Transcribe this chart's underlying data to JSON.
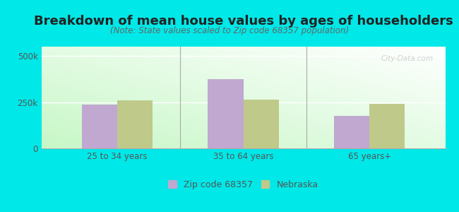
{
  "title": "Breakdown of mean house values by ages of householders",
  "subtitle": "(Note: State values scaled to Zip code 68357 population)",
  "categories": [
    "25 to 34 years",
    "35 to 64 years",
    "65 years+"
  ],
  "zip_values": [
    235000,
    375000,
    175000
  ],
  "state_values": [
    260000,
    265000,
    240000
  ],
  "zip_color": "#c0a8d0",
  "state_color": "#bfc98a",
  "background_color": "#00e8e8",
  "ylim": [
    0,
    550000
  ],
  "ytick_labels": [
    "0",
    "250k",
    "500k"
  ],
  "ytick_vals": [
    0,
    250000,
    500000
  ],
  "legend_zip_label": "Zip code 68357",
  "legend_state_label": "Nebraska",
  "bar_width": 0.28,
  "title_fontsize": 13,
  "subtitle_fontsize": 8.5,
  "tick_fontsize": 8.5,
  "legend_fontsize": 9,
  "watermark": "City-Data.com"
}
